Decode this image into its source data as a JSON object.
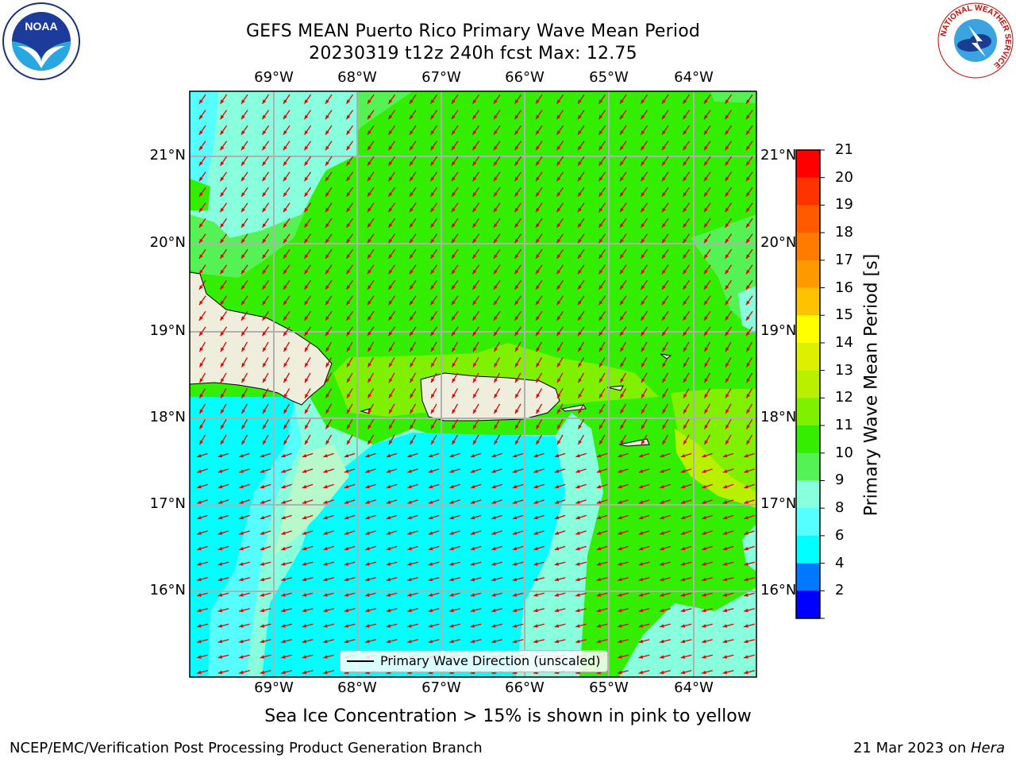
{
  "header": {
    "title_line1": "GEFS MEAN Puerto Rico Primary Wave Mean Period",
    "title_line2": "20230319 t12z 240h fcst   Max: 12.75"
  },
  "map": {
    "lon_ticks": [
      "69°W",
      "68°W",
      "67°W",
      "66°W",
      "65°W",
      "64°W"
    ],
    "lat_ticks": [
      "21°N",
      "20°N",
      "19°N",
      "18°N",
      "17°N",
      "16°N"
    ],
    "legend_label": "Primary Wave Direction (unscaled)",
    "arrow_color": "#e00000",
    "land_color": "#efeddc"
  },
  "colorbar": {
    "label": "Primary Wave Mean Period [s]",
    "ticks": [
      "21",
      "20",
      "19",
      "18",
      "17",
      "16",
      "15",
      "14",
      "13",
      "12",
      "11",
      "10",
      "9",
      "8",
      "6",
      "4",
      "2"
    ],
    "bands_top_to_bottom": [
      "#ff0000",
      "#ff3300",
      "#ff5a00",
      "#ff7b00",
      "#ff9900",
      "#ffc200",
      "#ffff00",
      "#dcf000",
      "#b8f000",
      "#7ef000",
      "#33ee00",
      "#55f255",
      "#88ffdd",
      "#55ffff",
      "#00ffff",
      "#0078ff",
      "#0000ff"
    ]
  },
  "footer": {
    "note": "Sea Ice Concentration > 15% is shown in pink to yellow",
    "credit": "NCEP/EMC/Verification Post Processing Product Generation Branch",
    "date_prefix": "21 Mar 2023 on ",
    "date_host": "Hera"
  },
  "logos": {
    "left": "NOAA",
    "right_ring": "NATIONAL WEATHER SERVICE"
  }
}
